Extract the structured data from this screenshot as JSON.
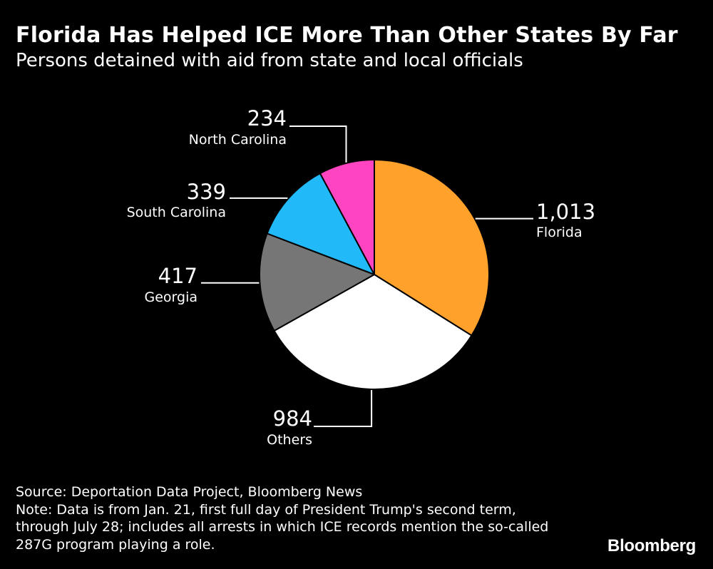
{
  "header": {
    "title": "Florida Has Helped ICE More Than Other States By Far",
    "subtitle": "Persons detained with aid from state and local officials"
  },
  "chart_data": {
    "type": "pie",
    "title": "Florida Has Helped ICE More Than Other States By Far",
    "subtitle": "Persons detained with aid from state and local officials",
    "start_angle_deg": 0,
    "direction": "clockwise",
    "slices": [
      {
        "label": "Florida",
        "value": 1013,
        "display": "1,013",
        "color": "#ffa12b"
      },
      {
        "label": "Others",
        "value": 984,
        "display": "984",
        "color": "#ffffff"
      },
      {
        "label": "Georgia",
        "value": 417,
        "display": "417",
        "color": "#767676"
      },
      {
        "label": "South Carolina",
        "value": 339,
        "display": "339",
        "color": "#21b9f8"
      },
      {
        "label": "North Carolina",
        "value": 234,
        "display": "234",
        "color": "#ff44c2"
      }
    ]
  },
  "footer": {
    "source": "Source: Deportation Data Project, Bloomberg News",
    "note_lines": [
      "Note: Data is from Jan. 21, first full day of President Trump's second term,",
      "through July 28; includes all arrests in which ICE records mention the so-called",
      "287G program playing a role."
    ],
    "brand": "Bloomberg"
  }
}
